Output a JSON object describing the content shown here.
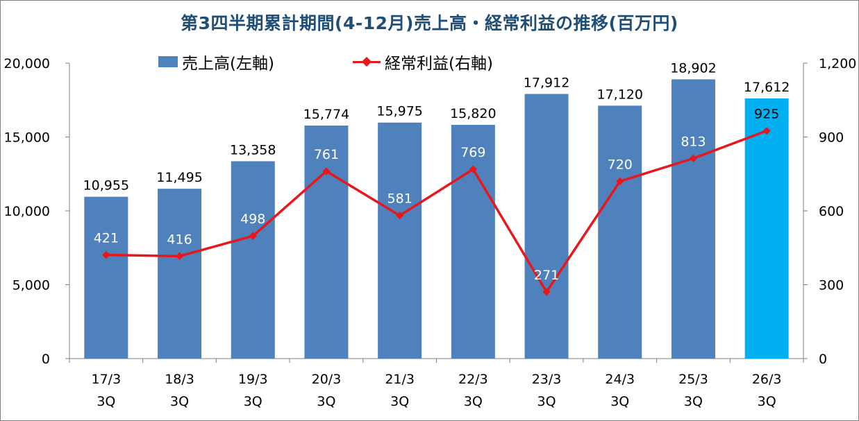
{
  "chart_data": {
    "type": "bar",
    "title": "第3四半期累計期間(4-12月)売上高・経常利益の推移(百万円)",
    "categories": [
      {
        "line1": "17/3",
        "line2": "3Q"
      },
      {
        "line1": "18/3",
        "line2": "3Q"
      },
      {
        "line1": "19/3",
        "line2": "3Q"
      },
      {
        "line1": "20/3",
        "line2": "3Q"
      },
      {
        "line1": "21/3",
        "line2": "3Q"
      },
      {
        "line1": "22/3",
        "line2": "3Q"
      },
      {
        "line1": "23/3",
        "line2": "3Q"
      },
      {
        "line1": "24/3",
        "line2": "3Q"
      },
      {
        "line1": "25/3",
        "line2": "3Q"
      },
      {
        "line1": "26/3",
        "line2": "3Q"
      }
    ],
    "series": [
      {
        "name": "売上高(左軸)",
        "type": "bar",
        "axis": "left",
        "values": [
          10955,
          11495,
          13358,
          15774,
          15975,
          15820,
          17912,
          17120,
          18902,
          17612
        ],
        "labels": [
          "10,955",
          "11,495",
          "13,358",
          "15,774",
          "15,975",
          "15,820",
          "17,912",
          "17,120",
          "18,902",
          "17,612"
        ],
        "color": "#4f81bd",
        "highlight_color": "#00b0f0",
        "highlight_index": 9
      },
      {
        "name": "経常利益(右軸)",
        "type": "line",
        "axis": "right",
        "values": [
          421,
          416,
          498,
          761,
          581,
          769,
          271,
          720,
          813,
          925
        ],
        "labels": [
          "421",
          "416",
          "498",
          "761",
          "581",
          "769",
          "271",
          "720",
          "813",
          "925"
        ],
        "color": "#e8171b",
        "label_color": "#ffffff",
        "highlight_label_color": "#e8171b",
        "highlight_index": 9
      }
    ],
    "y_left": {
      "min": 0,
      "max": 20000,
      "ticks": [
        "0",
        "5,000",
        "10,000",
        "15,000",
        "20,000"
      ]
    },
    "y_right": {
      "min": 0,
      "max": 1200,
      "ticks": [
        "0",
        "300",
        "600",
        "900",
        "1,200"
      ]
    },
    "grid": false,
    "legend_position": "top"
  }
}
